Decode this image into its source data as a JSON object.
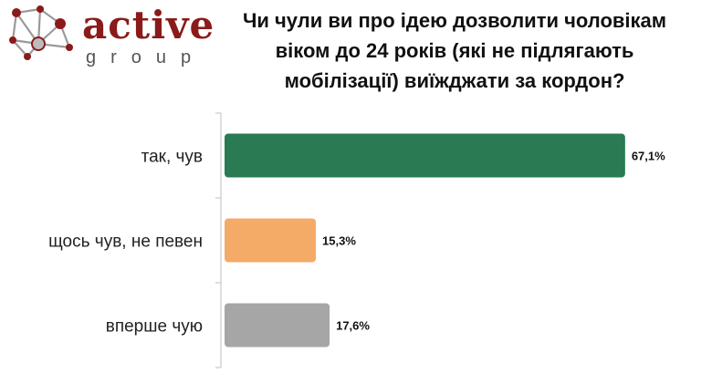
{
  "logo": {
    "word": "active",
    "sub": "group",
    "icon": "network-nodes-icon",
    "colors": {
      "word": "#8b1a1a",
      "sub": "#555555",
      "nodes": "#8b1a1a",
      "lines": "#9a9a9a"
    }
  },
  "chart_data": {
    "type": "bar",
    "orientation": "horizontal",
    "title": "Чи чули ви про ідею дозволити чоловікам віком до 24 років (які не підлягають мобілізації) виїжджати за кордон?",
    "categories": [
      "так, чув",
      "щось чув, не певен",
      "вперше чую"
    ],
    "values": [
      67.1,
      15.3,
      17.6
    ],
    "value_labels": [
      "67,1%",
      "15,3%",
      "17,6%"
    ],
    "colors": [
      "#2a7a54",
      "#f4ab68",
      "#a6a6a6"
    ],
    "xlim": [
      0,
      100
    ],
    "unit": "%",
    "grid": false
  }
}
